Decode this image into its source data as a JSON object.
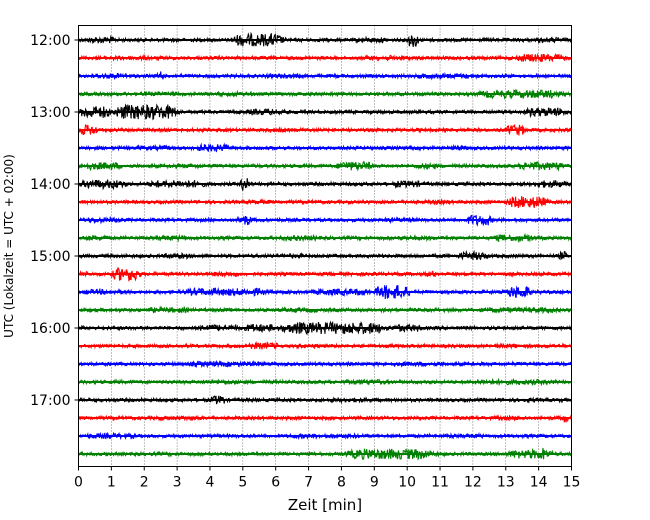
{
  "chart_data": {
    "type": "line",
    "title": "",
    "xlabel": "Zeit  [min]",
    "ylabel": "UTC (Lokalzeit = UTC + 02:00)",
    "xlim": [
      0,
      15
    ],
    "x_ticks": [
      "0",
      "1",
      "2",
      "3",
      "4",
      "5",
      "6",
      "7",
      "8",
      "9",
      "10",
      "11",
      "12",
      "13",
      "14",
      "15"
    ],
    "y_ticks": [
      "12:00",
      "13:00",
      "14:00",
      "15:00",
      "16:00",
      "17:00"
    ],
    "y_tick_rows": [
      0,
      4,
      8,
      12,
      16,
      20
    ],
    "grid": "vertical-dotted",
    "trace_colors": [
      "#000000",
      "#ff0000",
      "#0000ff",
      "#008000"
    ],
    "row_start_times": [
      "12:00",
      "12:15",
      "12:30",
      "12:45",
      "13:00",
      "13:15",
      "13:30",
      "13:45",
      "14:00",
      "14:15",
      "14:30",
      "14:45",
      "15:00",
      "15:15",
      "15:30",
      "15:45",
      "16:00",
      "16:15",
      "16:30",
      "16:45",
      "17:00",
      "17:15",
      "17:30",
      "17:45"
    ],
    "bursts": [
      [
        [
          0.2,
          1.2,
          0.45
        ],
        [
          4.6,
          6.3,
          0.85
        ],
        [
          8.3,
          9.5,
          0.35
        ],
        [
          10.0,
          10.35,
          1.0
        ],
        [
          13.8,
          14.9,
          0.35
        ]
      ],
      [
        [
          0.5,
          2.5,
          0.3
        ],
        [
          8.5,
          10.2,
          0.35
        ],
        [
          13.2,
          14.9,
          0.55
        ]
      ],
      [
        [
          0.2,
          1.8,
          0.35
        ],
        [
          2.4,
          2.6,
          0.9
        ],
        [
          5.5,
          7.0,
          0.3
        ],
        [
          10.0,
          12.5,
          0.35
        ]
      ],
      [
        [
          1.5,
          3.2,
          0.3
        ],
        [
          4.0,
          5.5,
          0.3
        ],
        [
          12.0,
          14.9,
          0.55
        ]
      ],
      [
        [
          0.0,
          1.0,
          0.8
        ],
        [
          1.0,
          3.1,
          1.0
        ],
        [
          5.0,
          6.5,
          0.4
        ],
        [
          13.5,
          14.9,
          0.6
        ]
      ],
      [
        [
          0.0,
          0.6,
          0.7
        ],
        [
          5.5,
          6.5,
          0.3
        ],
        [
          13.0,
          13.6,
          0.75
        ]
      ],
      [
        [
          1.5,
          3.0,
          0.3
        ],
        [
          3.5,
          4.7,
          0.5
        ],
        [
          11.2,
          12.0,
          0.3
        ]
      ],
      [
        [
          0.0,
          1.4,
          0.5
        ],
        [
          2.5,
          4.0,
          0.3
        ],
        [
          7.8,
          9.0,
          0.6
        ],
        [
          10.2,
          11.0,
          0.4
        ],
        [
          13.3,
          14.9,
          0.55
        ]
      ],
      [
        [
          0.0,
          1.5,
          0.6
        ],
        [
          2.0,
          4.0,
          0.5
        ],
        [
          4.9,
          5.2,
          0.95
        ],
        [
          9.5,
          10.5,
          0.45
        ],
        [
          13.8,
          14.9,
          0.5
        ]
      ],
      [
        [
          5.0,
          6.0,
          0.3
        ],
        [
          10.5,
          11.5,
          0.3
        ],
        [
          13.0,
          14.3,
          0.8
        ]
      ],
      [
        [
          0.0,
          1.5,
          0.35
        ],
        [
          4.8,
          5.3,
          0.7
        ],
        [
          9.0,
          10.5,
          0.3
        ],
        [
          11.8,
          12.6,
          0.75
        ]
      ],
      [
        [
          0.0,
          1.0,
          0.35
        ],
        [
          2.0,
          3.5,
          0.35
        ],
        [
          6.0,
          7.5,
          0.35
        ],
        [
          9.5,
          11.0,
          0.3
        ],
        [
          12.5,
          14.0,
          0.45
        ]
      ],
      [
        [
          2.5,
          3.5,
          0.35
        ],
        [
          6.0,
          7.0,
          0.3
        ],
        [
          11.5,
          12.5,
          0.55
        ],
        [
          14.6,
          14.9,
          0.6
        ]
      ],
      [
        [
          0.0,
          0.4,
          0.35
        ],
        [
          1.0,
          1.9,
          0.9
        ],
        [
          4.0,
          5.0,
          0.35
        ],
        [
          10.5,
          11.0,
          0.4
        ]
      ],
      [
        [
          0.0,
          1.5,
          0.35
        ],
        [
          3.0,
          6.0,
          0.5
        ],
        [
          7.0,
          9.0,
          0.45
        ],
        [
          9.0,
          10.1,
          0.95
        ],
        [
          13.0,
          13.8,
          0.8
        ]
      ],
      [
        [
          2.0,
          3.5,
          0.35
        ],
        [
          6.0,
          7.5,
          0.3
        ],
        [
          12.0,
          14.9,
          0.35
        ]
      ],
      [
        [
          3.5,
          5.0,
          0.45
        ],
        [
          5.0,
          6.0,
          0.55
        ],
        [
          6.0,
          9.5,
          0.8
        ],
        [
          9.5,
          10.5,
          0.5
        ]
      ],
      [
        [
          5.0,
          6.2,
          0.45
        ],
        [
          6.5,
          7.5,
          0.3
        ],
        [
          12.5,
          13.5,
          0.3
        ]
      ],
      [
        [
          3.0,
          6.0,
          0.35
        ],
        [
          9.0,
          11.5,
          0.3
        ]
      ],
      [
        [
          3.5,
          5.0,
          0.3
        ],
        [
          8.0,
          9.5,
          0.35
        ],
        [
          11.5,
          14.9,
          0.35
        ]
      ],
      [
        [
          4.0,
          4.5,
          0.6
        ],
        [
          7.5,
          9.0,
          0.3
        ],
        [
          13.5,
          14.0,
          0.3
        ]
      ],
      [
        [
          2.0,
          4.0,
          0.3
        ],
        [
          12.5,
          13.8,
          0.3
        ],
        [
          14.7,
          14.9,
          0.8
        ]
      ],
      [
        [
          0.0,
          2.0,
          0.35
        ],
        [
          6.0,
          9.0,
          0.3
        ],
        [
          11.0,
          12.5,
          0.3
        ]
      ],
      [
        [
          8.0,
          11.0,
          0.7
        ],
        [
          13.0,
          14.5,
          0.6
        ],
        [
          14.0,
          14.3,
          0.9
        ]
      ]
    ]
  }
}
